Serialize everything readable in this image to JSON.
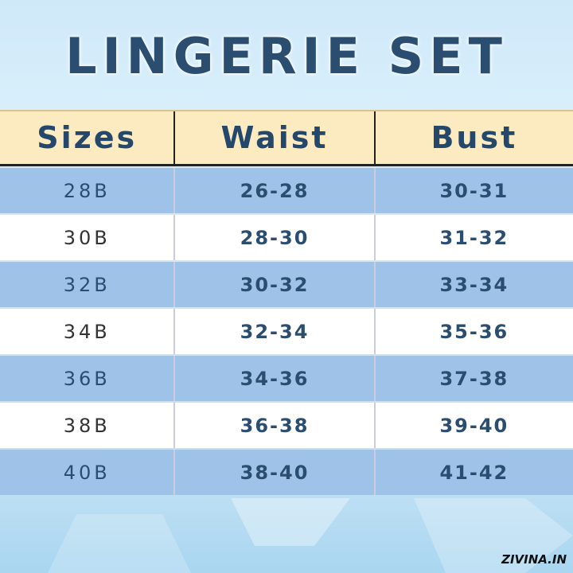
{
  "title": "LINGERIE SET",
  "table": {
    "headers": [
      "Sizes",
      "Waist",
      "Bust"
    ],
    "rows": [
      [
        "28B",
        "26-28",
        "30-31"
      ],
      [
        "30B",
        "28-30",
        "31-32"
      ],
      [
        "32B",
        "30-32",
        "33-34"
      ],
      [
        "34B",
        "32-34",
        "35-36"
      ],
      [
        "36B",
        "34-36",
        "37-38"
      ],
      [
        "38B",
        "36-38",
        "39-40"
      ],
      [
        "40B",
        "38-40",
        "41-42"
      ]
    ]
  },
  "brand": "ZIVINA.IN",
  "colors": {
    "header_bg": "#fcebc1",
    "row_blue": "#9fc3e8",
    "row_white": "#ffffff",
    "text": "#2b4d6f"
  }
}
